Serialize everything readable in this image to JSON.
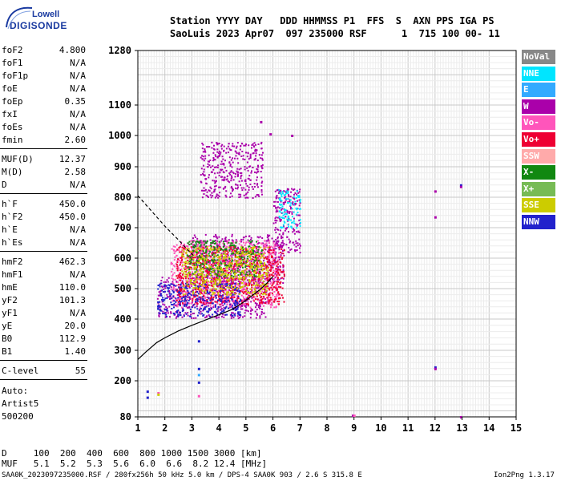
{
  "logo": {
    "top": "Lowell",
    "main": "DIGISONDE"
  },
  "header": {
    "line1": "Station YYYY DAY   DDD HHMMSS P1  FFS  S  AXN PPS IGA PS",
    "line2": "SaoLuis 2023 Apr07  097 235000 RSF      1  715 100 00- 11"
  },
  "params": [
    {
      "name": "foF2",
      "value": "4.800"
    },
    {
      "name": "foF1",
      "value": "N/A"
    },
    {
      "name": "foF1p",
      "value": "N/A"
    },
    {
      "name": "foE",
      "value": "N/A"
    },
    {
      "name": "foEp",
      "value": "0.35"
    },
    {
      "name": "fxI",
      "value": "N/A"
    },
    {
      "name": "foEs",
      "value": "N/A"
    },
    {
      "name": "fmin",
      "value": "2.60"
    },
    {
      "name": "MUF(D)",
      "value": "12.37"
    },
    {
      "name": "M(D)",
      "value": "2.58"
    },
    {
      "name": "D",
      "value": "N/A"
    },
    {
      "name": "h`F",
      "value": "450.0"
    },
    {
      "name": "h`F2",
      "value": "450.0"
    },
    {
      "name": "h`E",
      "value": "N/A"
    },
    {
      "name": "h`Es",
      "value": "N/A"
    },
    {
      "name": "hmF2",
      "value": "462.3"
    },
    {
      "name": "hmF1",
      "value": "N/A"
    },
    {
      "name": "hmE",
      "value": "110.0"
    },
    {
      "name": "yF2",
      "value": "101.3"
    },
    {
      "name": "yF1",
      "value": "N/A"
    },
    {
      "name": "yE",
      "value": "20.0"
    },
    {
      "name": "B0",
      "value": "112.9"
    },
    {
      "name": "B1",
      "value": "1.40"
    },
    {
      "name": "C-level",
      "value": "55"
    }
  ],
  "auto": {
    "label": "Auto:",
    "artist": "Artist5",
    "version": "500200"
  },
  "legend": [
    {
      "label": "NoVal",
      "color": "#888888",
      "text_color": "#ffffff"
    },
    {
      "label": "NNE",
      "color": "#00e5ff",
      "text_color": "#ffffff"
    },
    {
      "label": "E",
      "color": "#33aaff",
      "text_color": "#ffffff"
    },
    {
      "label": "W",
      "color": "#aa00aa",
      "text_color": "#ffffff"
    },
    {
      "label": "Vo-",
      "color": "#ff55bb",
      "text_color": "#ffffff"
    },
    {
      "label": "Vo+",
      "color": "#ee0033",
      "text_color": "#ffffff"
    },
    {
      "label": "SSW",
      "color": "#ffaaaa",
      "text_color": "#ffffff"
    },
    {
      "label": "X-",
      "color": "#118811",
      "text_color": "#ffffff"
    },
    {
      "label": "X+",
      "color": "#77bb55",
      "text_color": "#ffffff"
    },
    {
      "label": "SSE",
      "color": "#cccc00",
      "text_color": "#ffffff"
    },
    {
      "label": "NNW",
      "color": "#2222cc",
      "text_color": "#ffffff"
    }
  ],
  "muf_table": {
    "d_row": "D     100  200  400  600  800 1000 1500 3000 [km]",
    "muf_row": "MUF   5.1  5.2  5.3  5.6  6.0  6.6  8.2 12.4 [MHz]"
  },
  "footer": {
    "left": "SAA0K_2023097235000.RSF / 280fx256h 50 kHz 5.0 km / DPS-4 SAA0K 903 / 2.6 S 315.8 E",
    "right": "Ion2Png 1.3.17"
  },
  "chart_data": {
    "type": "scatter",
    "title": "",
    "xlabel": "",
    "ylabel": "",
    "xlim": [
      1,
      15
    ],
    "ylim": [
      80,
      1280
    ],
    "x_ticks": [
      1,
      2,
      3,
      4,
      5,
      6,
      7,
      8,
      9,
      10,
      11,
      12,
      13,
      14,
      15
    ],
    "y_ticks": [
      80,
      200,
      300,
      400,
      500,
      600,
      700,
      800,
      900,
      1000,
      1100,
      1280
    ],
    "grid": true,
    "profile_line": {
      "style": "solid",
      "points": [
        [
          1.0,
          270
        ],
        [
          1.3,
          295
        ],
        [
          1.7,
          325
        ],
        [
          2.0,
          340
        ],
        [
          2.5,
          362
        ],
        [
          3.0,
          380
        ],
        [
          3.5,
          397
        ],
        [
          4.0,
          414
        ],
        [
          4.5,
          432
        ],
        [
          4.9,
          455
        ],
        [
          5.2,
          475
        ],
        [
          5.5,
          495
        ],
        [
          5.8,
          520
        ],
        [
          6.0,
          540
        ]
      ]
    },
    "extrapolated_line": {
      "style": "dashed",
      "points": [
        [
          1.0,
          805
        ],
        [
          1.5,
          755
        ],
        [
          2.0,
          705
        ],
        [
          2.5,
          660
        ],
        [
          2.9,
          622
        ],
        [
          3.1,
          605
        ]
      ]
    },
    "echo_regions": [
      {
        "component": "W",
        "x_range": [
          1.7,
          5.8
        ],
        "h_range": [
          405,
          540
        ]
      },
      {
        "component": "W",
        "x_range": [
          2.9,
          6.4
        ],
        "h_range": [
          520,
          680
        ]
      },
      {
        "component": "W",
        "x_range": [
          6.0,
          7.0
        ],
        "h_range": [
          620,
          830
        ]
      },
      {
        "component": "Vo-",
        "x_range": [
          2.2,
          6.2
        ],
        "h_range": [
          440,
          660
        ]
      },
      {
        "component": "Vo+",
        "x_range": [
          2.4,
          6.4
        ],
        "h_range": [
          450,
          640
        ]
      },
      {
        "component": "NNW",
        "x_range": [
          1.7,
          4.8
        ],
        "h_range": [
          410,
          520
        ]
      },
      {
        "component": "X-",
        "x_range": [
          2.8,
          5.6
        ],
        "h_range": [
          540,
          660
        ]
      },
      {
        "component": "SSE",
        "x_range": [
          2.6,
          5.8
        ],
        "h_range": [
          480,
          640
        ]
      },
      {
        "component": "W",
        "x_range": [
          3.3,
          5.6
        ],
        "h_range": [
          800,
          980
        ]
      },
      {
        "component": "NNE",
        "x_range": [
          6.2,
          7.0
        ],
        "h_range": [
          700,
          830
        ]
      }
    ],
    "isolated_points": [
      {
        "x": 1.35,
        "h": 165,
        "component": "NNW"
      },
      {
        "x": 1.35,
        "h": 145,
        "component": "NNW"
      },
      {
        "x": 1.75,
        "h": 160,
        "component": "Vo-"
      },
      {
        "x": 1.75,
        "h": 155,
        "component": "SSE"
      },
      {
        "x": 3.25,
        "h": 240,
        "component": "NNW"
      },
      {
        "x": 3.25,
        "h": 220,
        "component": "E"
      },
      {
        "x": 3.25,
        "h": 195,
        "component": "NNW"
      },
      {
        "x": 3.25,
        "h": 330,
        "component": "NNW"
      },
      {
        "x": 3.25,
        "h": 150,
        "component": "Vo-"
      },
      {
        "x": 8.95,
        "h": 85,
        "component": "W"
      },
      {
        "x": 9.0,
        "h": 85,
        "component": "Vo-"
      },
      {
        "x": 12.0,
        "h": 820,
        "component": "W"
      },
      {
        "x": 12.0,
        "h": 735,
        "component": "W"
      },
      {
        "x": 12.0,
        "h": 245,
        "component": "NNW"
      },
      {
        "x": 12.0,
        "h": 240,
        "component": "W"
      },
      {
        "x": 12.95,
        "h": 840,
        "component": "NNW"
      },
      {
        "x": 12.95,
        "h": 835,
        "component": "W"
      },
      {
        "x": 12.95,
        "h": 80,
        "component": "W"
      },
      {
        "x": 5.55,
        "h": 1045,
        "component": "W"
      },
      {
        "x": 5.9,
        "h": 1005,
        "component": "W"
      },
      {
        "x": 6.7,
        "h": 1000,
        "component": "W"
      }
    ]
  }
}
